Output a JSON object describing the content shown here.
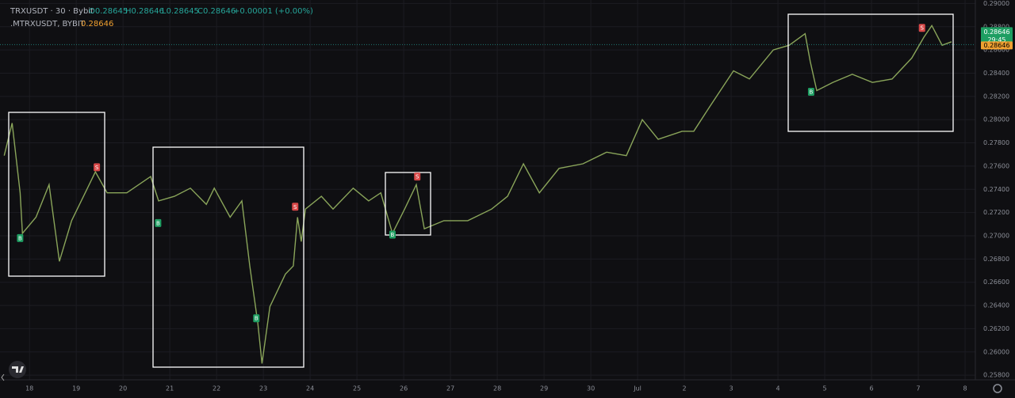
{
  "header": {
    "symbol": "TRXUSDT · 30 · Bybit",
    "open": "O0.28645",
    "high": "H0.28646",
    "low": "L0.28645",
    "close": "C0.28646",
    "change": "+0.00001 (+0.00%)",
    "indicator_name": ".MTRXUSDT, BYBIT",
    "indicator_value": "0.28646"
  },
  "chart_data": {
    "type": "line",
    "series": [
      {
        "name": "TRXUSDT",
        "color": "#8aa55a",
        "x": [
          -0.54,
          -0.37,
          -0.2,
          -0.15,
          0.14,
          0.42,
          0.64,
          0.9,
          1.24,
          1.41,
          1.66,
          2.08,
          2.59,
          2.76,
          3.1,
          3.44,
          3.78,
          3.95,
          4.29,
          4.54,
          4.71,
          4.88,
          4.97,
          5.14,
          5.47,
          5.64,
          5.73,
          5.81,
          5.9,
          6.24,
          6.49,
          6.92,
          7.25,
          7.51,
          7.76,
          8.02,
          8.27,
          8.44,
          8.86,
          9.37,
          9.88,
          10.22,
          10.56,
          10.9,
          11.32,
          11.83,
          12.34,
          12.76,
          13.1,
          13.44,
          13.95,
          14.2,
          14.54,
          15.05,
          15.39,
          15.9,
          16.24,
          16.58,
          16.69,
          16.83,
          17.17,
          17.59,
          18.02,
          18.44,
          18.86,
          19.12,
          19.29,
          19.51,
          19.71
        ],
        "values": [
          0.2769,
          0.2797,
          0.2737,
          0.2702,
          0.2716,
          0.2744,
          0.2678,
          0.2713,
          0.2741,
          0.2755,
          0.2737,
          0.2737,
          0.2751,
          0.273,
          0.2734,
          0.2741,
          0.2727,
          0.2741,
          0.2716,
          0.273,
          0.2674,
          0.2625,
          0.259,
          0.2639,
          0.2667,
          0.2674,
          0.2716,
          0.2695,
          0.2723,
          0.2734,
          0.2723,
          0.2741,
          0.273,
          0.2737,
          0.2702,
          0.2723,
          0.2744,
          0.2706,
          0.2713,
          0.2713,
          0.2723,
          0.2734,
          0.2762,
          0.2737,
          0.2758,
          0.2762,
          0.2772,
          0.2769,
          0.28,
          0.2783,
          0.279,
          0.279,
          0.2811,
          0.2842,
          0.2835,
          0.286,
          0.2864,
          0.2874,
          0.285,
          0.2825,
          0.2832,
          0.2839,
          0.2832,
          0.2835,
          0.2853,
          0.2871,
          0.2881,
          0.2864,
          0.2867
        ]
      }
    ],
    "signals": [
      {
        "label": "B",
        "x": -0.2,
        "y": 0.2698,
        "color": "#1e9e62"
      },
      {
        "label": "S",
        "x": 1.44,
        "y": 0.2759,
        "color": "#d84848"
      },
      {
        "label": "B",
        "x": 2.75,
        "y": 0.2711,
        "color": "#1e9e62"
      },
      {
        "label": "B",
        "x": 4.85,
        "y": 0.2629,
        "color": "#1e9e62"
      },
      {
        "label": "S",
        "x": 5.68,
        "y": 0.2725,
        "color": "#d84848"
      },
      {
        "label": "B",
        "x": 7.76,
        "y": 0.2701,
        "color": "#1e9e62"
      },
      {
        "label": "S",
        "x": 8.29,
        "y": 0.2751,
        "color": "#d84848"
      },
      {
        "label": "B",
        "x": 16.71,
        "y": 0.2824,
        "color": "#1e9e62"
      },
      {
        "label": "S",
        "x": 19.08,
        "y": 0.2879,
        "color": "#d84848"
      }
    ],
    "last_price": 0.28646,
    "countdown": "29:45",
    "indicator_price": 0.28646,
    "xlim": [
      -0.63,
      20.22
    ],
    "xticks": [
      {
        "value": 0,
        "label": "18"
      },
      {
        "value": 1,
        "label": "19"
      },
      {
        "value": 2,
        "label": "20"
      },
      {
        "value": 3,
        "label": "21"
      },
      {
        "value": 4,
        "label": "22"
      },
      {
        "value": 5,
        "label": "23"
      },
      {
        "value": 6,
        "label": "24"
      },
      {
        "value": 7,
        "label": "25"
      },
      {
        "value": 8,
        "label": "26"
      },
      {
        "value": 9,
        "label": "27"
      },
      {
        "value": 10,
        "label": "28"
      },
      {
        "value": 11,
        "label": "29"
      },
      {
        "value": 12,
        "label": "30"
      },
      {
        "value": 13,
        "label": "Jul"
      },
      {
        "value": 14,
        "label": "2"
      },
      {
        "value": 15,
        "label": "3"
      },
      {
        "value": 16,
        "label": "4"
      },
      {
        "value": 17,
        "label": "5"
      },
      {
        "value": 18,
        "label": "6"
      },
      {
        "value": 19,
        "label": "7"
      },
      {
        "value": 20,
        "label": "8"
      }
    ],
    "ylim": [
      0.2576,
      0.2903
    ],
    "yticks": [
      {
        "value": 0.258,
        "label": "0.25800"
      },
      {
        "value": 0.26,
        "label": "0.26000"
      },
      {
        "value": 0.262,
        "label": "0.26200"
      },
      {
        "value": 0.264,
        "label": "0.26400"
      },
      {
        "value": 0.266,
        "label": "0.26600"
      },
      {
        "value": 0.268,
        "label": "0.26800"
      },
      {
        "value": 0.27,
        "label": "0.27000"
      },
      {
        "value": 0.272,
        "label": "0.27200"
      },
      {
        "value": 0.274,
        "label": "0.27400"
      },
      {
        "value": 0.276,
        "label": "0.27600"
      },
      {
        "value": 0.278,
        "label": "0.27800"
      },
      {
        "value": 0.28,
        "label": "0.28000"
      },
      {
        "value": 0.282,
        "label": "0.28200"
      },
      {
        "value": 0.284,
        "label": "0.28400"
      },
      {
        "value": 0.286,
        "label": "0.28600"
      },
      {
        "value": 0.288,
        "label": "0.28800"
      },
      {
        "value": 0.29,
        "label": "0.29000"
      }
    ],
    "grid": true
  }
}
